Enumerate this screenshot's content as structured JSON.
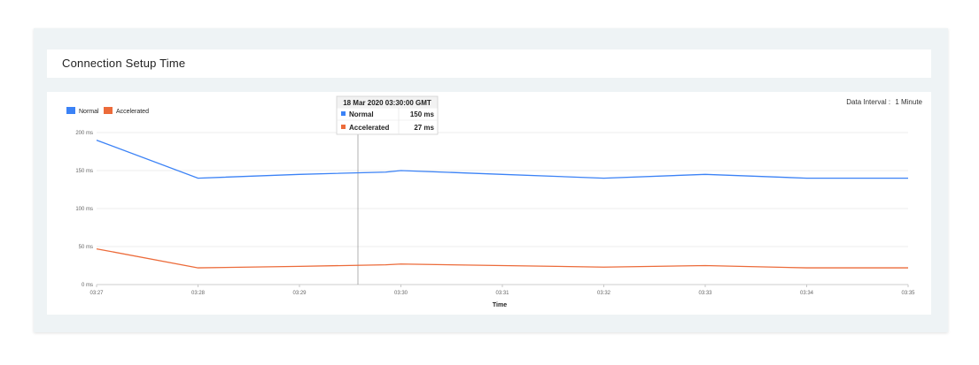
{
  "page": {
    "title": "Connection Setup Time"
  },
  "interval": {
    "label": "Data Interval :",
    "value": "1 Minute"
  },
  "colors": {
    "normal": "#3b82f6",
    "accelerated": "#ec6b3a",
    "grid": "#e6e6e6",
    "axis": "#bdbdbd",
    "crosshair": "#9e9e9e"
  },
  "chart_data": {
    "type": "line",
    "xlabel": "Time",
    "ylabel": "",
    "ylim": [
      0,
      200
    ],
    "yticks": [
      "0 ms",
      "50 ms",
      "100 ms",
      "150 ms",
      "200 ms"
    ],
    "ytick_values": [
      0,
      50,
      100,
      150,
      200
    ],
    "categories": [
      "03:27",
      "03:28",
      "03:29",
      "03:30",
      "03:31",
      "03:32",
      "03:33",
      "03:34",
      "03:35"
    ],
    "series": [
      {
        "name": "Normal",
        "color": "#3b82f6",
        "x": [
          0,
          1,
          2,
          2.85,
          3,
          4,
          5,
          6,
          7,
          8
        ],
        "values": [
          190,
          140,
          145,
          148,
          150,
          145,
          140,
          145,
          140,
          140
        ]
      },
      {
        "name": "Accelerated",
        "color": "#ec6b3a",
        "x": [
          0,
          1,
          2,
          2.85,
          3,
          4,
          5,
          6,
          7,
          8
        ],
        "values": [
          47,
          22,
          24,
          26,
          27,
          25,
          23,
          25,
          22,
          22
        ]
      }
    ],
    "legend_position": "top-left",
    "grid": true,
    "tooltip": {
      "title": "18 Mar 2020 03:30:00 GMT",
      "rows": [
        {
          "label": "Normal",
          "value": "150 ms"
        },
        {
          "label": "Accelerated",
          "value": "27 ms"
        }
      ]
    }
  }
}
